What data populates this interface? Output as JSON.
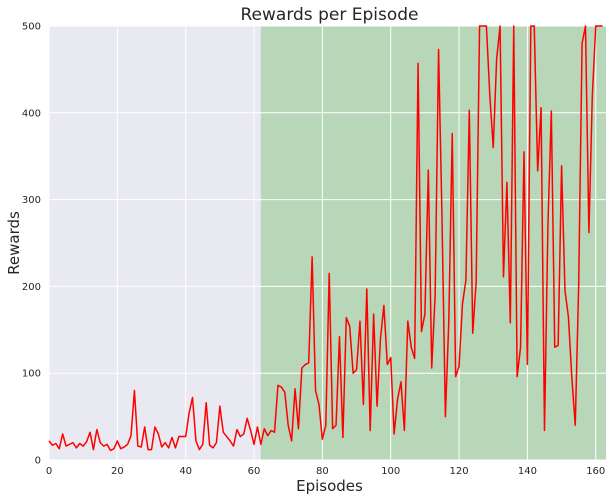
{
  "chart_data": {
    "type": "line",
    "title": "Rewards per Episode",
    "xlabel": "Episodes",
    "ylabel": "Rewards",
    "xlim": [
      0,
      163
    ],
    "ylim": [
      0,
      500
    ],
    "xticks": [
      0,
      20,
      40,
      60,
      80,
      100,
      120,
      140,
      160
    ],
    "yticks": [
      0,
      100,
      200,
      300,
      400,
      500
    ],
    "grid": true,
    "highlight_region": {
      "x_start": 62,
      "x_end": 163,
      "color": "#b7d7b8"
    },
    "background_color": "#e9e9f1",
    "series": [
      {
        "color": "#ff0000",
        "x": [
          0,
          1,
          2,
          3,
          4,
          5,
          6,
          7,
          8,
          9,
          10,
          11,
          12,
          13,
          14,
          15,
          16,
          17,
          18,
          19,
          20,
          21,
          22,
          23,
          24,
          25,
          26,
          27,
          28,
          29,
          30,
          31,
          32,
          33,
          34,
          35,
          36,
          37,
          38,
          39,
          40,
          41,
          42,
          43,
          44,
          45,
          46,
          47,
          48,
          49,
          50,
          51,
          52,
          53,
          54,
          55,
          56,
          57,
          58,
          59,
          60,
          61,
          62,
          63,
          64,
          65,
          66,
          67,
          68,
          69,
          70,
          71,
          72,
          73,
          74,
          75,
          76,
          77,
          78,
          79,
          80,
          81,
          82,
          83,
          84,
          85,
          86,
          87,
          88,
          89,
          90,
          91,
          92,
          93,
          94,
          95,
          96,
          97,
          98,
          99,
          100,
          101,
          102,
          103,
          104,
          105,
          106,
          107,
          108,
          109,
          110,
          111,
          112,
          113,
          114,
          115,
          116,
          117,
          118,
          119,
          120,
          121,
          122,
          123,
          124,
          125,
          126,
          127,
          128,
          129,
          130,
          131,
          132,
          133,
          134,
          135,
          136,
          137,
          138,
          139,
          140,
          141,
          142,
          143,
          144,
          145,
          146,
          147,
          148,
          149,
          150,
          151,
          152,
          153,
          154,
          155,
          156,
          157,
          158,
          159,
          160,
          161,
          162
        ],
        "values": [
          22,
          17,
          19,
          13,
          30,
          16,
          18,
          20,
          14,
          19,
          16,
          21,
          32,
          12,
          35,
          20,
          16,
          18,
          11,
          13,
          22,
          13,
          15,
          18,
          28,
          80,
          16,
          15,
          38,
          12,
          12,
          38,
          30,
          15,
          20,
          14,
          26,
          14,
          27,
          27,
          27,
          54,
          72,
          22,
          12,
          18,
          66,
          17,
          14,
          20,
          62,
          32,
          27,
          22,
          16,
          35,
          27,
          30,
          48,
          34,
          18,
          38,
          18,
          36,
          28,
          34,
          32,
          86,
          84,
          78,
          40,
          22,
          82,
          36,
          106,
          110,
          112,
          234,
          80,
          64,
          24,
          40,
          215,
          36,
          40,
          142,
          26,
          164,
          154,
          100,
          104,
          160,
          64,
          197,
          34,
          168,
          62,
          140,
          178,
          110,
          118,
          30,
          70,
          90,
          34,
          160,
          130,
          117,
          457,
          148,
          168,
          334,
          106,
          190,
          473,
          280,
          50,
          160,
          376,
          96,
          108,
          180,
          207,
          403,
          146,
          205,
          500,
          500,
          500,
          420,
          360,
          462,
          500,
          211,
          320,
          158,
          500,
          96,
          130,
          355,
          110,
          500,
          500,
          333,
          406,
          34,
          270,
          402,
          130,
          132,
          339,
          195,
          165,
          95,
          40,
          200,
          480,
          500,
          262,
          420,
          500,
          500,
          500
        ]
      }
    ]
  }
}
